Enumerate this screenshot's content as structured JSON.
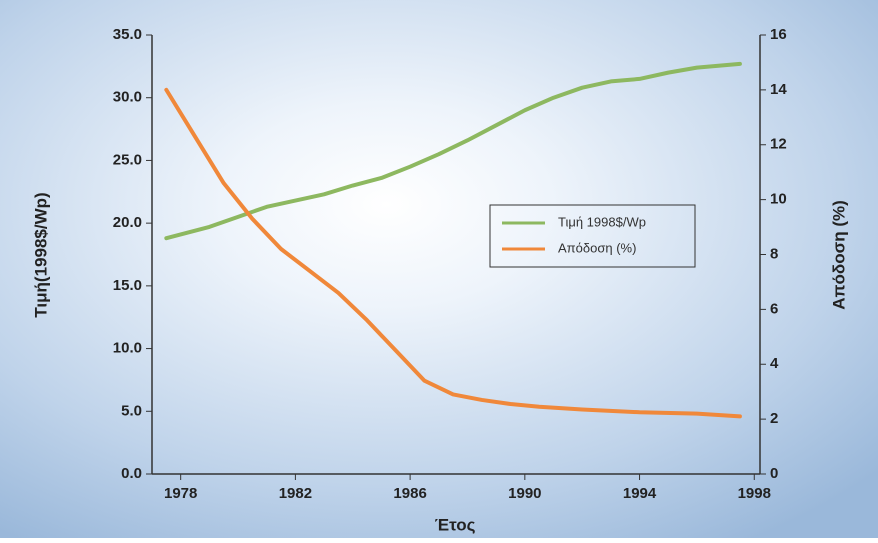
{
  "chart_data": {
    "type": "line",
    "xlabel": "Έτος",
    "ylabel": "Τιμή(1998$/Wp)",
    "y2label": "Απόδοση (%)",
    "xlim": [
      1977,
      1998.2
    ],
    "xticks": [
      1978,
      1982,
      1986,
      1990,
      1994,
      1998
    ],
    "ylim": [
      0,
      35
    ],
    "yticks": [
      {
        "value": 0,
        "label": "0.0"
      },
      {
        "value": 5,
        "label": "5.0"
      },
      {
        "value": 10,
        "label": "10.0"
      },
      {
        "value": 15,
        "label": "15.0"
      },
      {
        "value": 20,
        "label": "20.0"
      },
      {
        "value": 25,
        "label": "25.0"
      },
      {
        "value": 30,
        "label": "30.0"
      },
      {
        "value": 35,
        "label": "35.0"
      }
    ],
    "y2lim": [
      0,
      16
    ],
    "y2ticks": [
      0,
      2,
      4,
      6,
      8,
      10,
      12,
      14,
      16
    ],
    "series": [
      {
        "name": "Τιμή 1998$/Wp",
        "color": "#8db860",
        "x": [
          1977.5,
          1979,
          1980,
          1981,
          1982,
          1983,
          1984,
          1985,
          1986,
          1987,
          1988,
          1989,
          1990,
          1991,
          1992,
          1993,
          1994,
          1995,
          1996,
          1997.5
        ],
        "values": [
          18.8,
          19.7,
          20.5,
          21.3,
          21.8,
          22.3,
          23.0,
          23.6,
          24.5,
          25.5,
          26.6,
          27.8,
          29.0,
          30.0,
          30.8,
          31.3,
          31.5,
          32.0,
          32.4,
          32.7
        ]
      },
      {
        "name": "Απόδοση (%)",
        "color": "#f0883a",
        "axis": "y2",
        "x": [
          1977.5,
          1978.5,
          1979.5,
          1980.5,
          1981.5,
          1982.5,
          1983.5,
          1984.5,
          1985.5,
          1986.5,
          1987.5,
          1988.5,
          1989.5,
          1990.5,
          1992,
          1994,
          1996,
          1997.5
        ],
        "values": [
          14.0,
          12.3,
          10.6,
          9.3,
          8.2,
          7.4,
          6.6,
          5.6,
          4.5,
          3.4,
          2.9,
          2.7,
          2.55,
          2.45,
          2.35,
          2.25,
          2.2,
          2.1
        ]
      }
    ],
    "legend": "center-right"
  }
}
